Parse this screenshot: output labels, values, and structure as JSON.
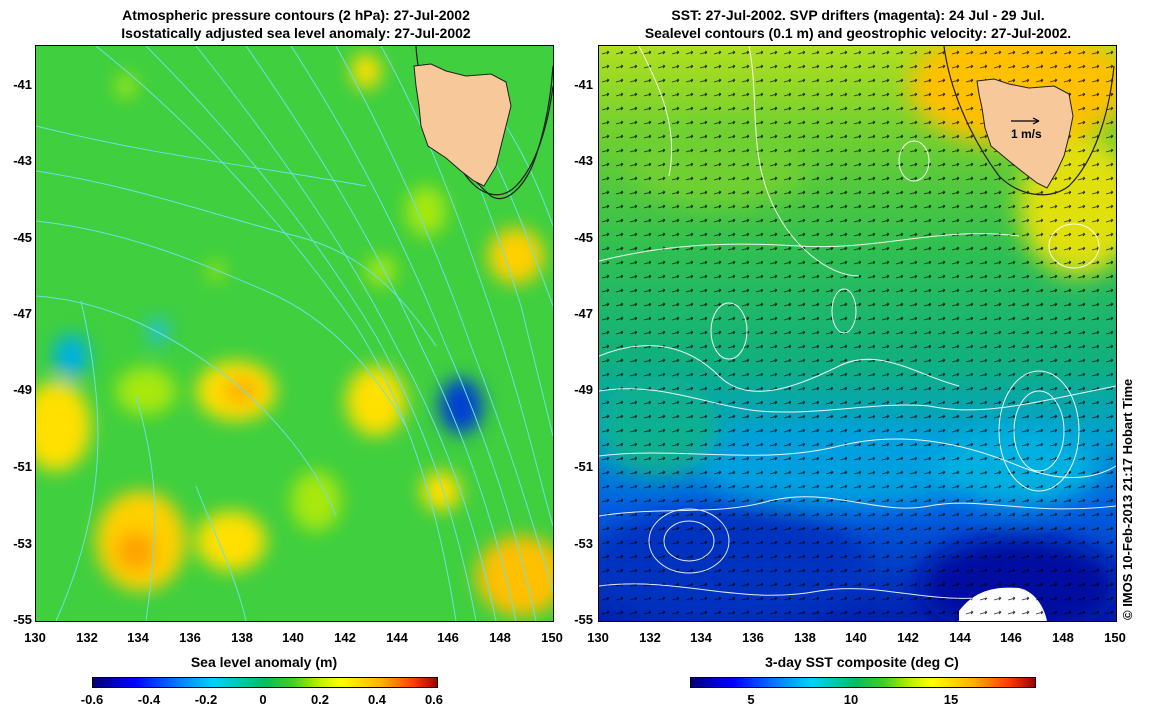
{
  "left": {
    "title_line1": "Atmospheric pressure contours (2 hPa): 27-Jul-2002",
    "title_line2": "Isostatically adjusted sea level anomaly: 27-Jul-2002",
    "colorbar_label": "Sea level anomaly (m)",
    "colorbar_ticks": [
      "-0.6",
      "-0.4",
      "-0.2",
      "0",
      "0.2",
      "0.4",
      "0.6"
    ],
    "colors": {
      "background": "#3fcf3f",
      "contour": "#6fe0e0",
      "coast": "#202020",
      "land": "#f6c89a"
    }
  },
  "right": {
    "title_line1": "SST: 27-Jul-2002. SVP drifters (magenta): 24 Jul - 29 Jul.",
    "title_line2": "Sealevel contours (0.1 m) and geostrophic velocity: 27-Jul-2002.",
    "colorbar_label": "3-day SST composite (deg C)",
    "colorbar_ticks": [
      "5",
      "10",
      "15"
    ],
    "scale_label": "1 m/s",
    "colors": {
      "warm": "#c8e020",
      "mid": "#20c060",
      "cool": "#0090e0",
      "cold": "#0020c0",
      "land": "#f6c89a"
    }
  },
  "axes": {
    "x_ticks": [
      "130",
      "132",
      "134",
      "136",
      "138",
      "140",
      "142",
      "144",
      "146",
      "148",
      "150"
    ],
    "y_ticks": [
      "-41",
      "-43",
      "-45",
      "-47",
      "-49",
      "-51",
      "-53",
      "-55"
    ]
  },
  "credit": "© IMOS 10-Feb-2013 21:17 Hobart Time"
}
